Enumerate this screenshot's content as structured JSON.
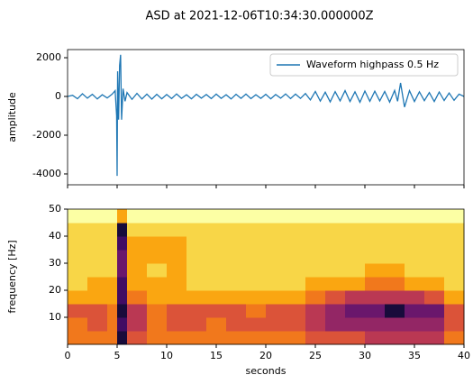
{
  "chart_data": [
    {
      "type": "line",
      "title": "ASD at 2021-12-06T10:34:30.000000Z",
      "ylabel": "amplitude",
      "x": [
        0,
        0.5,
        1,
        1.5,
        2,
        2.5,
        3,
        3.5,
        4,
        4.5,
        4.8,
        4.95,
        5.0,
        5.05,
        5.15,
        5.25,
        5.35,
        5.45,
        5.6,
        5.8,
        6,
        6.5,
        7,
        7.5,
        8,
        8.5,
        9,
        9.5,
        10,
        10.5,
        11,
        11.5,
        12,
        12.5,
        13,
        13.5,
        14,
        14.5,
        15,
        15.5,
        16,
        16.5,
        17,
        17.5,
        18,
        18.5,
        19,
        19.5,
        20,
        20.5,
        21,
        21.5,
        22,
        22.5,
        23,
        23.5,
        24,
        24.5,
        25,
        25.5,
        26,
        26.5,
        27,
        27.5,
        28,
        28.5,
        29,
        29.5,
        30,
        30.5,
        31,
        31.5,
        32,
        32.5,
        33,
        33.3,
        33.6,
        34,
        34.5,
        35,
        35.5,
        36,
        36.5,
        37,
        37.5,
        38,
        38.5,
        39,
        39.5,
        40
      ],
      "series": [
        {
          "name": "Waveform highpass 0.5 Hz",
          "color": "#1f77b4",
          "values": [
            0,
            60,
            -120,
            140,
            -90,
            110,
            -130,
            90,
            -80,
            120,
            300,
            -1000,
            -4100,
            1300,
            -1200,
            1600,
            2150,
            -1200,
            400,
            -250,
            200,
            -150,
            160,
            -130,
            120,
            -140,
            110,
            -120,
            100,
            -110,
            130,
            -100,
            90,
            -120,
            110,
            -90,
            100,
            -110,
            120,
            -100,
            90,
            -130,
            110,
            -100,
            120,
            -110,
            90,
            -100,
            110,
            -120,
            100,
            -90,
            130,
            -110,
            120,
            -100,
            150,
            -180,
            260,
            -240,
            220,
            -280,
            250,
            -230,
            300,
            -260,
            240,
            -300,
            280,
            -250,
            270,
            -230,
            260,
            -290,
            310,
            -250,
            700,
            -550,
            300,
            -260,
            240,
            -220,
            200,
            -260,
            230,
            -210,
            180,
            -200,
            120,
            0
          ]
        }
      ],
      "xlim": [
        0,
        40
      ],
      "xticks": [
        0,
        5,
        10,
        15,
        20,
        25,
        30,
        35,
        40
      ],
      "show_xtick_labels": false,
      "ylim": [
        -4560,
        2420
      ],
      "yticks": [
        -4000,
        -2000,
        0,
        2000
      ],
      "legend": "upper right"
    },
    {
      "type": "heatmap",
      "xlabel": "seconds",
      "ylabel": "frequency [Hz]",
      "xbins": [
        0,
        2,
        4,
        5,
        6,
        8,
        10,
        12,
        14,
        16,
        18,
        20,
        22,
        24,
        26,
        28,
        30,
        32,
        34,
        36,
        38,
        40
      ],
      "ybins": [
        0,
        5,
        10,
        15,
        20,
        25,
        30,
        35,
        40,
        45,
        50
      ],
      "z": [
        [
          3,
          3,
          3,
          9,
          4,
          3,
          3,
          3,
          3,
          3,
          3,
          3,
          3,
          4,
          4,
          4,
          5,
          5,
          5,
          5,
          3
        ],
        [
          3,
          4,
          3,
          8,
          5,
          3,
          4,
          4,
          3,
          4,
          4,
          4,
          4,
          5,
          6,
          6,
          6,
          6,
          6,
          6,
          4
        ],
        [
          4,
          4,
          3,
          9,
          5,
          3,
          4,
          4,
          4,
          4,
          3,
          4,
          4,
          5,
          6,
          7,
          7,
          9,
          7,
          7,
          4
        ],
        [
          2,
          2,
          2,
          8,
          3,
          2,
          2,
          2,
          2,
          2,
          2,
          2,
          2,
          3,
          4,
          5,
          5,
          5,
          5,
          4,
          2
        ],
        [
          1,
          2,
          2,
          8,
          2,
          2,
          2,
          1,
          1,
          1,
          1,
          1,
          1,
          2,
          2,
          2,
          3,
          3,
          2,
          2,
          1
        ],
        [
          1,
          1,
          1,
          7,
          2,
          1,
          2,
          1,
          1,
          1,
          1,
          1,
          1,
          1,
          1,
          1,
          2,
          2,
          1,
          1,
          1
        ],
        [
          1,
          1,
          1,
          7,
          2,
          2,
          2,
          1,
          1,
          1,
          1,
          1,
          1,
          1,
          1,
          1,
          1,
          1,
          1,
          1,
          1
        ],
        [
          1,
          1,
          1,
          8,
          2,
          2,
          2,
          1,
          1,
          1,
          1,
          1,
          1,
          1,
          1,
          1,
          1,
          1,
          1,
          1,
          1
        ],
        [
          1,
          1,
          1,
          9,
          1,
          1,
          1,
          1,
          1,
          1,
          1,
          1,
          1,
          1,
          1,
          1,
          1,
          1,
          1,
          1,
          1
        ],
        [
          0,
          0,
          0,
          2,
          0,
          0,
          0,
          0,
          0,
          0,
          0,
          0,
          0,
          0,
          0,
          0,
          0,
          0,
          0,
          0,
          0
        ]
      ],
      "zlim": [
        0,
        10
      ],
      "colormap": [
        "#fcffa4",
        "#f7d13d",
        "#fb9b06",
        "#ed6925",
        "#cf4446",
        "#a52c60",
        "#781c6d",
        "#4a0c6b",
        "#1b0c41",
        "#000004"
      ],
      "xlim": [
        0,
        40
      ],
      "xticks": [
        0,
        5,
        10,
        15,
        20,
        25,
        30,
        35,
        40
      ],
      "ylim": [
        0,
        50
      ],
      "yticks": [
        10,
        20,
        30,
        40,
        50
      ]
    }
  ]
}
